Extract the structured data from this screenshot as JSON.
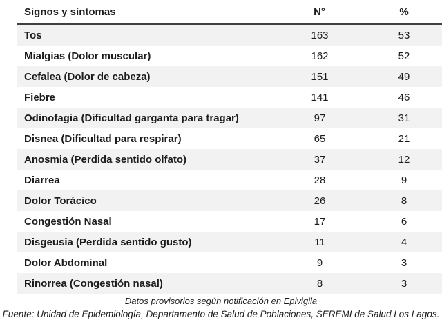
{
  "table": {
    "columns": [
      "Signos y síntomas",
      "N°",
      "%"
    ],
    "rows": [
      {
        "symptom": "Tos",
        "n": "163",
        "pct": "53"
      },
      {
        "symptom": "Mialgias (Dolor muscular)",
        "n": "162",
        "pct": "52"
      },
      {
        "symptom": "Cefalea (Dolor de cabeza)",
        "n": "151",
        "pct": "49"
      },
      {
        "symptom": "Fiebre",
        "n": "141",
        "pct": "46"
      },
      {
        "symptom": "Odinofagia  (Dificultad garganta para tragar)",
        "n": "97",
        "pct": "31"
      },
      {
        "symptom": "Disnea (Dificultad para respirar)",
        "n": "65",
        "pct": "21"
      },
      {
        "symptom": "Anosmia (Perdida sentido olfato)",
        "n": "37",
        "pct": "12"
      },
      {
        "symptom": "Diarrea",
        "n": "28",
        "pct": "9"
      },
      {
        "symptom": "Dolor Torácico",
        "n": "26",
        "pct": "8"
      },
      {
        "symptom": "Congestión Nasal",
        "n": "17",
        "pct": "6"
      },
      {
        "symptom": "Disgeusia (Perdida sentido gusto)",
        "n": "11",
        "pct": "4"
      },
      {
        "symptom": "Dolor Abdominal",
        "n": "9",
        "pct": "3"
      },
      {
        "symptom": "Rinorrea (Congestión nasal)",
        "n": "8",
        "pct": "3"
      }
    ]
  },
  "footer": {
    "note": "Datos provisorios según notificación en Epivigila",
    "source": "Fuente: Unidad de Epidemiología, Departamento de Salud de Poblaciones, SEREMI de Salud Los Lagos."
  },
  "colors": {
    "stripe": "#f2f2f2",
    "header_rule": "#404040",
    "column_divider": "#999999",
    "text": "#1c1c1c"
  }
}
